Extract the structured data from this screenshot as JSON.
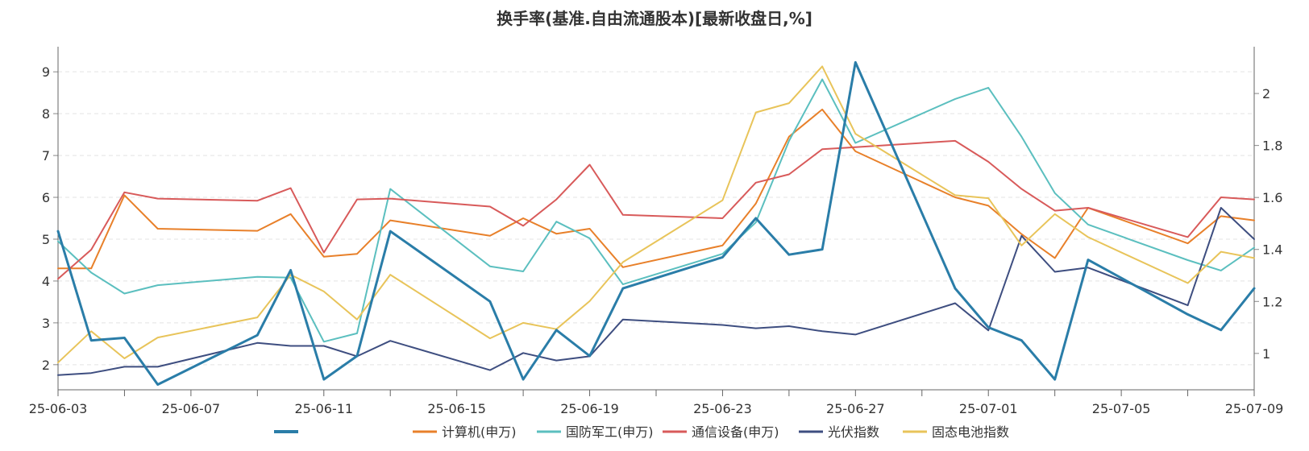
{
  "chart_data": {
    "type": "line",
    "title": "换手率(基准.自由流通股本)[最新收盘日,%]",
    "xlabel": "",
    "ylabel": "",
    "x": [
      "25-06-03",
      "25-06-04",
      "25-06-05",
      "25-06-06",
      "25-06-09",
      "25-06-10",
      "25-06-11",
      "25-06-12",
      "25-06-13",
      "25-06-16",
      "25-06-17",
      "25-06-18",
      "25-06-19",
      "25-06-20",
      "25-06-23",
      "25-06-24",
      "25-06-25",
      "25-06-26",
      "25-06-27",
      "25-06-30",
      "25-07-01",
      "25-07-02",
      "25-07-03",
      "25-07-04",
      "25-07-07",
      "25-07-08",
      "25-07-09"
    ],
    "x_axis": {
      "tick_labels": [
        "25-06-03",
        "25-06-07",
        "25-06-11",
        "25-06-15",
        "25-06-19",
        "25-06-23",
        "25-06-27",
        "25-07-01",
        "25-07-05",
        "25-07-09"
      ],
      "min": "25-06-03",
      "max": "25-07-09"
    },
    "y_left": {
      "min": 1.4,
      "max": 9.6,
      "ticks": [
        2,
        3,
        4,
        5,
        6,
        7,
        8,
        9
      ]
    },
    "y_right": {
      "min": 0.86,
      "max": 2.18,
      "ticks": [
        1,
        1.2,
        1.4,
        1.6,
        1.8,
        2
      ]
    },
    "grid": "horizontal dashed",
    "legend_position": "bottom",
    "series": [
      {
        "name": "",
        "axis": "right",
        "color": "#2a7da8",
        "width": 3,
        "values": [
          1.47,
          1.05,
          1.06,
          0.88,
          1.07,
          1.32,
          0.9,
          0.99,
          1.47,
          1.2,
          0.9,
          1.09,
          0.99,
          1.25,
          1.37,
          1.52,
          1.38,
          1.4,
          2.12,
          1.25,
          1.1,
          1.05,
          0.9,
          1.36,
          1.15,
          1.09,
          1.25
        ]
      },
      {
        "name": "计算机(申万)",
        "axis": "left",
        "color": "#e8802a",
        "width": 2,
        "values": [
          4.3,
          4.3,
          6.05,
          5.25,
          5.2,
          5.6,
          4.58,
          4.65,
          5.45,
          5.08,
          5.5,
          5.13,
          5.25,
          4.33,
          4.85,
          5.85,
          7.45,
          8.1,
          7.1,
          6.0,
          5.8,
          5.12,
          4.55,
          5.75,
          4.9,
          5.55,
          5.45
        ]
      },
      {
        "name": "国防军工(申万)",
        "axis": "left",
        "color": "#5bbfbf",
        "width": 2,
        "values": [
          4.95,
          4.2,
          3.7,
          3.9,
          4.1,
          4.08,
          2.55,
          2.75,
          6.2,
          4.35,
          4.23,
          5.42,
          5.02,
          3.92,
          4.65,
          5.4,
          7.35,
          8.82,
          7.3,
          8.35,
          8.62,
          7.45,
          6.1,
          5.35,
          4.5,
          4.25,
          4.8
        ]
      },
      {
        "name": "通信设备(申万)",
        "axis": "left",
        "color": "#d85a5a",
        "width": 2,
        "values": [
          4.05,
          4.75,
          6.12,
          5.97,
          5.92,
          6.22,
          4.68,
          5.95,
          5.97,
          5.78,
          5.32,
          5.95,
          6.78,
          5.58,
          5.5,
          6.35,
          6.55,
          7.15,
          7.2,
          7.35,
          6.85,
          6.2,
          5.68,
          5.75,
          5.05,
          6.0,
          5.95
        ]
      },
      {
        "name": "光伏指数",
        "axis": "left",
        "color": "#3e4e80",
        "width": 2,
        "values": [
          1.75,
          1.8,
          1.95,
          1.95,
          2.52,
          2.45,
          2.45,
          2.2,
          2.57,
          1.87,
          2.28,
          2.1,
          2.2,
          3.08,
          2.95,
          2.87,
          2.92,
          2.8,
          2.72,
          3.47,
          2.82,
          5.08,
          4.22,
          4.32,
          3.42,
          5.75,
          5.0
        ]
      },
      {
        "name": "固态电池指数",
        "axis": "left",
        "color": "#e8c45a",
        "width": 2,
        "values": [
          2.05,
          2.8,
          2.15,
          2.65,
          3.13,
          4.15,
          3.75,
          3.08,
          4.15,
          2.63,
          3.0,
          2.85,
          3.52,
          4.45,
          5.93,
          8.03,
          8.25,
          9.13,
          7.52,
          6.05,
          5.98,
          4.85,
          5.6,
          5.05,
          3.95,
          4.7,
          4.55
        ]
      }
    ]
  }
}
